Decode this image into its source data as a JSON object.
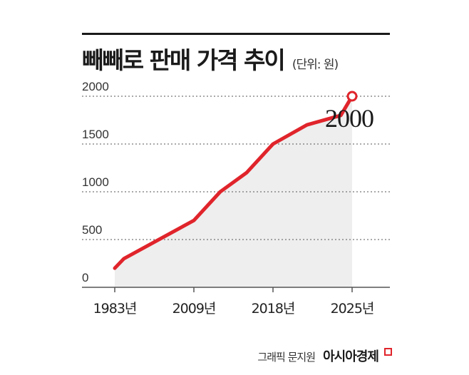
{
  "header": {
    "title": "빼빼로 판매 가격 추이",
    "unit": "(단위: 원)"
  },
  "footer": {
    "credit": "그래픽 문지원",
    "brand": "아시아경제"
  },
  "colors": {
    "line": "#e0242b",
    "area": "#eeeeee",
    "grid": "#555555"
  },
  "chart_data": {
    "type": "area",
    "title": "빼빼로 판매 가격 추이",
    "unit": "(단위: 원)",
    "x_ticks": [
      "1983년",
      "2009년",
      "2018년",
      "2025년"
    ],
    "y_ticks": [
      "0",
      "500",
      "1000",
      "1500",
      "2000"
    ],
    "ylim": [
      0,
      2000
    ],
    "grid": "horizontal dotted",
    "series": [
      {
        "points": [
          {
            "x": 1983,
            "y": 200
          },
          {
            "x": 1986,
            "y": 300
          },
          {
            "x": 2009,
            "y": 700
          },
          {
            "x": 2012,
            "y": 1000
          },
          {
            "x": 2015,
            "y": 1200
          },
          {
            "x": 2018,
            "y": 1500
          },
          {
            "x": 2021,
            "y": 1700
          },
          {
            "x": 2024,
            "y": 1800
          },
          {
            "x": 2025,
            "y": 2000
          }
        ]
      }
    ],
    "annotation": "2000"
  }
}
